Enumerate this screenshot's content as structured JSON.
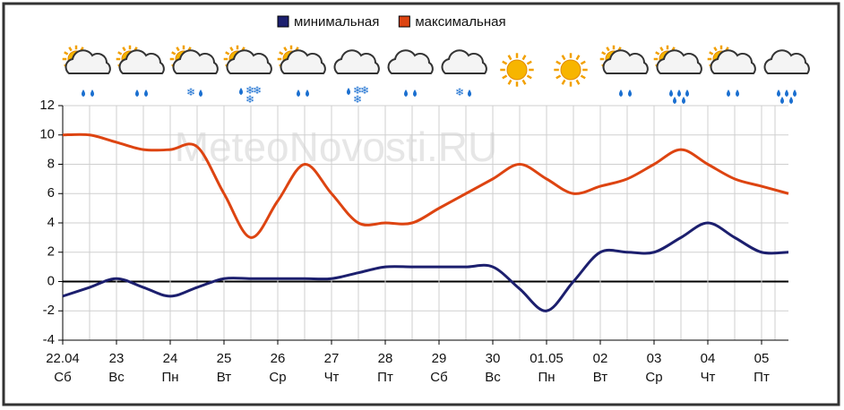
{
  "chart_data": {
    "type": "line",
    "watermark": "MeteoNovosti.RU",
    "xlim": [
      0,
      13.5
    ],
    "xticks": [
      {
        "value": 0,
        "label": "22.04"
      },
      {
        "value": 1,
        "label": "23"
      },
      {
        "value": 2,
        "label": "24"
      },
      {
        "value": 3,
        "label": "25"
      },
      {
        "value": 4,
        "label": "26"
      },
      {
        "value": 5,
        "label": "27"
      },
      {
        "value": 6,
        "label": "28"
      },
      {
        "value": 7,
        "label": "29"
      },
      {
        "value": 8,
        "label": "30"
      },
      {
        "value": 9,
        "label": "01.05"
      },
      {
        "value": 10,
        "label": "02"
      },
      {
        "value": 11,
        "label": "03"
      },
      {
        "value": 12,
        "label": "04"
      },
      {
        "value": 13,
        "label": "05"
      }
    ],
    "weekdays": [
      "Сб",
      "Вс",
      "Пн",
      "Вт",
      "Ср",
      "Чт",
      "Пт",
      "Сб",
      "Вс",
      "Пн",
      "Вт",
      "Ср",
      "Чт",
      "Пт"
    ],
    "ylim": [
      -4,
      12
    ],
    "yticks": [
      -4,
      -2,
      0,
      2,
      4,
      6,
      8,
      10,
      12
    ],
    "grid": true,
    "x": [
      0,
      0.5,
      1,
      1.5,
      2,
      2.5,
      3,
      3.5,
      4,
      4.5,
      5,
      5.5,
      6,
      6.5,
      7,
      7.5,
      8,
      8.5,
      9,
      9.5,
      10,
      10.5,
      11,
      11.5,
      12,
      12.5,
      13,
      13.5
    ],
    "series": [
      {
        "name": "минимальная",
        "color": "#1c1f6e",
        "values": [
          -1,
          -0.4,
          0.2,
          -0.4,
          -1,
          -0.4,
          0.2,
          0.2,
          0.2,
          0.2,
          0.2,
          0.6,
          1,
          1,
          1,
          1,
          1,
          -0.5,
          -2,
          0,
          2,
          2,
          2,
          3,
          4,
          3,
          2,
          2
        ]
      },
      {
        "name": "максимальная",
        "color": "#dd4411",
        "values": [
          10,
          10,
          9.5,
          9,
          9,
          9.2,
          6,
          3,
          5.5,
          8,
          6,
          4,
          4,
          4,
          5,
          6,
          7,
          8,
          7,
          6,
          6.5,
          7,
          8,
          9,
          8,
          7,
          6.5,
          6
        ]
      }
    ]
  }
}
